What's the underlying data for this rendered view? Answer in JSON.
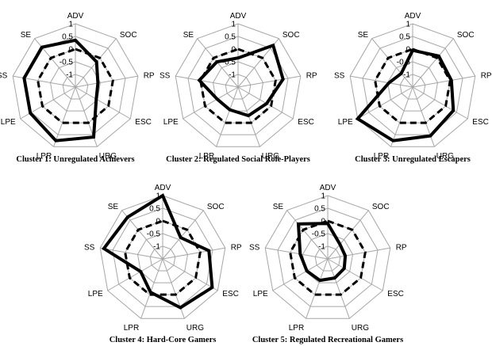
{
  "chart_data": [
    {
      "type": "radar",
      "title": "Cluster 1: Unregulated Achievers",
      "axes": [
        "ADV",
        "SOC",
        "RP",
        "ESC",
        "URG",
        "LPR",
        "LPE",
        "SS",
        "SE"
      ],
      "ticks": [
        "1",
        "0.5",
        "0",
        "-0.5",
        "-1"
      ],
      "rlim": [
        -1.5,
        1
      ],
      "series": [
        {
          "style": "solid",
          "values": [
            0.35,
            -0.2,
            -0.6,
            -0.55,
            0.6,
            0.75,
            0.55,
            0.55,
            0.55
          ]
        },
        {
          "style": "dashed",
          "values": [
            0,
            0,
            0,
            0,
            0,
            0,
            0,
            0,
            0
          ]
        }
      ]
    },
    {
      "type": "radar",
      "title": "Cluster 2: Regulated Social Role-Players",
      "axes": [
        "ADV",
        "SOC",
        "RP",
        "ESC",
        "URG",
        "LPR",
        "LPE",
        "SS",
        "SE"
      ],
      "ticks": [
        "1",
        "0.5",
        "0",
        "-0.5",
        "-1"
      ],
      "rlim": [
        -1.5,
        1
      ],
      "series": [
        {
          "style": "solid",
          "values": [
            -0.35,
            0.65,
            0.3,
            -0.2,
            -0.3,
            -0.55,
            -0.55,
            0.05,
            -0.2
          ]
        },
        {
          "style": "dashed",
          "values": [
            0,
            0,
            0,
            0,
            0,
            0,
            0,
            0,
            0
          ]
        }
      ]
    },
    {
      "type": "radar",
      "title": "Cluster 3: Unregulated Escapers",
      "axes": [
        "ADV",
        "SOC",
        "RP",
        "ESC",
        "URG",
        "LPR",
        "LPE",
        "SS",
        "SE"
      ],
      "ticks": [
        "1",
        "0.5",
        "0",
        "-0.5",
        "-1"
      ],
      "rlim": [
        -1.5,
        1
      ],
      "series": [
        {
          "style": "solid",
          "values": [
            -0.05,
            0.1,
            0.05,
            0.35,
            0.55,
            0.75,
            1,
            -0.55,
            -0.8
          ]
        },
        {
          "style": "dashed",
          "values": [
            0,
            0,
            0,
            0,
            0,
            0,
            0,
            0,
            0
          ]
        }
      ]
    },
    {
      "type": "radar",
      "title": "Cluster 4: Hard-Core Gamers",
      "axes": [
        "ADV",
        "SOC",
        "RP",
        "ESC",
        "URG",
        "LPR",
        "LPE",
        "SS",
        "SE"
      ],
      "ticks": [
        "1",
        "0.5",
        "0",
        "-0.5",
        "-1"
      ],
      "rlim": [
        -1.5,
        1
      ],
      "series": [
        {
          "style": "solid",
          "values": [
            1,
            -0.4,
            0.35,
            0.75,
            0.55,
            -0.1,
            -0.5,
            0.85,
            0.65
          ]
        },
        {
          "style": "dashed",
          "values": [
            0,
            0,
            0,
            0,
            0,
            0,
            0,
            0,
            0
          ]
        }
      ]
    },
    {
      "type": "radar",
      "title": "Cluster 5: Regulated Recreational Gamers",
      "axes": [
        "ADV",
        "SOC",
        "RP",
        "ESC",
        "URG",
        "LPR",
        "LPE",
        "SS",
        "SE"
      ],
      "ticks": [
        "1",
        "0.5",
        "0",
        "-0.5",
        "-1"
      ],
      "rlim": [
        -1.5,
        1
      ],
      "series": [
        {
          "style": "solid",
          "values": [
            -0.1,
            -0.75,
            -0.8,
            -0.75,
            -0.7,
            -0.6,
            -0.55,
            -0.4,
            0.3
          ]
        },
        {
          "style": "dashed",
          "values": [
            0,
            0,
            0,
            0,
            0,
            0,
            0,
            0,
            0
          ]
        }
      ]
    }
  ]
}
